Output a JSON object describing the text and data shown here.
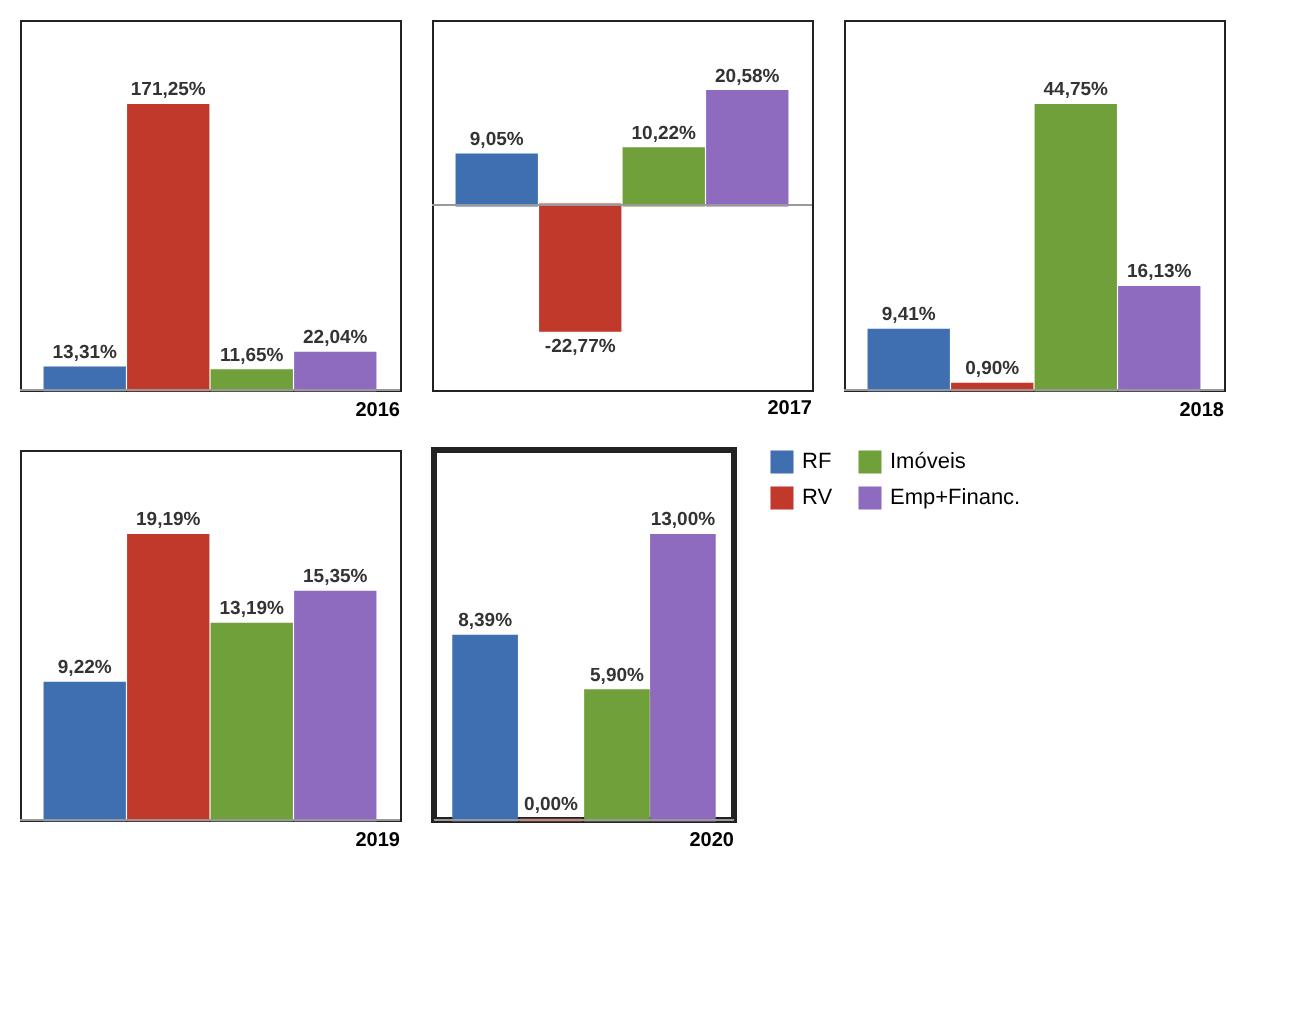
{
  "chart_data": [
    {
      "type": "bar",
      "title": "2016",
      "categories": [
        null
      ],
      "tick_labels": false,
      "legend": false,
      "series": [
        {
          "color": "#3f6fb0",
          "values": [
            13.31
          ],
          "value_labels": [
            "13,31%"
          ]
        },
        {
          "color": "#c0392b",
          "values": [
            171.25
          ],
          "value_labels": [
            "171,25%"
          ]
        },
        {
          "color": "#70a03a",
          "values": [
            11.65
          ],
          "value_labels": [
            "11,65%"
          ]
        },
        {
          "color": "#8e6bbf",
          "values": [
            22.04
          ],
          "value_labels": [
            "22,04%"
          ]
        }
      ]
    },
    {
      "type": "bar",
      "title": "2017",
      "categories": [
        null
      ],
      "tick_labels": false,
      "legend": false,
      "series": [
        {
          "color": "#3f6fb0",
          "values": [
            9.05
          ],
          "value_labels": [
            "9,05%"
          ]
        },
        {
          "color": "#c0392b",
          "values": [
            -22.77
          ],
          "value_labels": [
            "-22,77%"
          ]
        },
        {
          "color": "#70a03a",
          "values": [
            10.22
          ],
          "value_labels": [
            "10,22%"
          ]
        },
        {
          "color": "#8e6bbf",
          "values": [
            20.58
          ],
          "value_labels": [
            "20,58%"
          ]
        }
      ]
    },
    {
      "type": "bar",
      "title": "2018",
      "categories": [
        null
      ],
      "tick_labels": false,
      "legend": false,
      "series": [
        {
          "color": "#3f6fb0",
          "values": [
            9.41
          ],
          "value_labels": [
            "9,41%"
          ]
        },
        {
          "color": "#c0392b",
          "values": [
            0.9
          ],
          "value_labels": [
            "0,90%"
          ]
        },
        {
          "color": "#70a03a",
          "values": [
            44.75
          ],
          "value_labels": [
            "44,75%"
          ]
        },
        {
          "color": "#8e6bbf",
          "values": [
            16.13
          ],
          "value_labels": [
            "16,13%"
          ]
        }
      ]
    },
    {
      "type": "bar",
      "title": "2019",
      "categories": [
        null
      ],
      "tick_labels": false,
      "legend": false,
      "series": [
        {
          "color": "#3f6fb0",
          "values": [
            9.22
          ],
          "value_labels": [
            "9,22%"
          ]
        },
        {
          "color": "#c0392b",
          "values": [
            19.19
          ],
          "value_labels": [
            "19,19%"
          ]
        },
        {
          "color": "#70a03a",
          "values": [
            13.19
          ],
          "value_labels": [
            "13,19%"
          ]
        },
        {
          "color": "#8e6bbf",
          "values": [
            15.35
          ],
          "value_labels": [
            "15,35%"
          ]
        }
      ]
    },
    {
      "type": "bar",
      "title": "2020",
      "categories": [
        null
      ],
      "tick_labels": false,
      "legend": "right",
      "series": [
        {
          "name": "RF",
          "color": "#3f6fb0",
          "values": [
            8.39
          ],
          "value_labels": [
            "8,39%"
          ]
        },
        {
          "name": "RV",
          "color": "#c0392b",
          "values": [
            0.0
          ],
          "value_labels": [
            "0,00%"
          ]
        },
        {
          "name": "Imóveis",
          "color": "#70a03a",
          "values": [
            5.9
          ],
          "value_labels": [
            "5,90%"
          ]
        },
        {
          "name": "Emp+Financ.",
          "color": "#8e6bbf",
          "values": [
            13.0
          ],
          "value_labels": [
            "13,00%"
          ]
        }
      ]
    }
  ]
}
